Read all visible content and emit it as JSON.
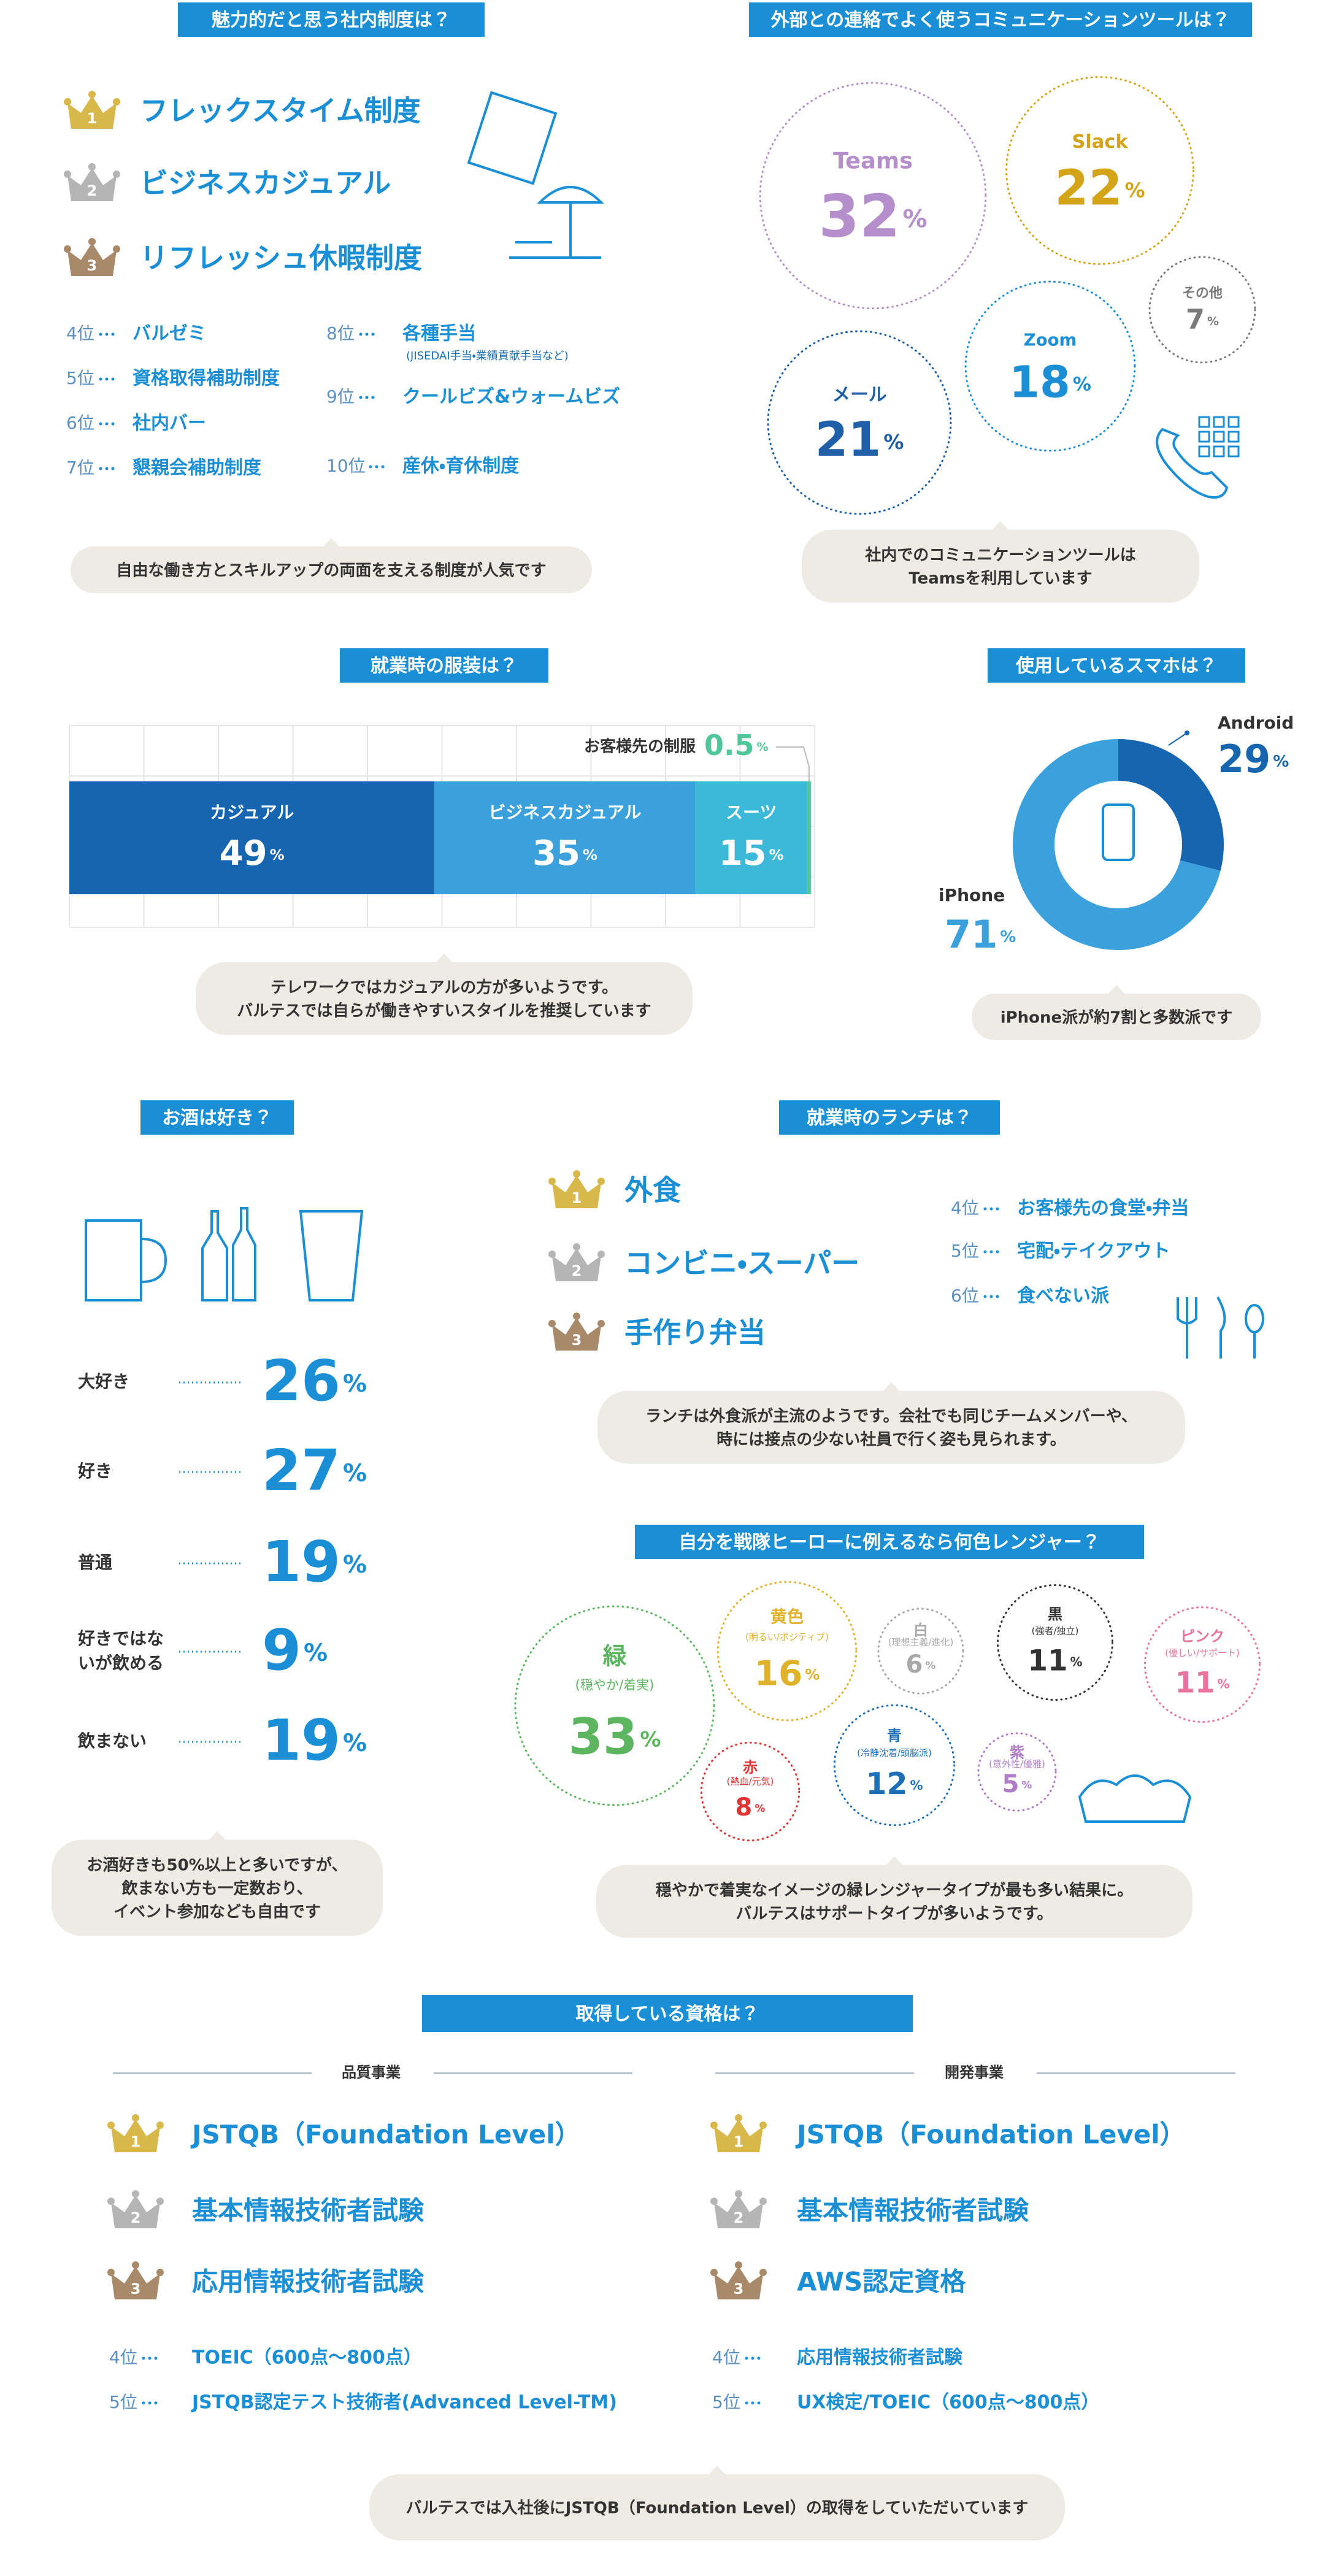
{
  "crown_numbers": [
    "1",
    "2",
    "3"
  ],
  "perks": {
    "title": "魅力的だと思う社内制度は？",
    "top3": [
      "フレックスタイム制度",
      "ビジネスカジュアル",
      "リフレッシュ休暇制度"
    ],
    "ranks": [
      {
        "rank": "4位",
        "label": "バルゼミ"
      },
      {
        "rank": "5位",
        "label": "資格取得補助制度"
      },
      {
        "rank": "6位",
        "label": "社内バー"
      },
      {
        "rank": "7位",
        "label": "懇親会補助制度"
      },
      {
        "rank": "8位",
        "label": "各種手当",
        "sub": "(JISEDAI手当・業績貢献手当など)"
      },
      {
        "rank": "9位",
        "label": "クールビズ&ウォームビズ"
      },
      {
        "rank": "10位",
        "label": "産休・育休制度"
      }
    ],
    "note": [
      "自由な働き方とスキルアップの両面を支える制度が人気です"
    ]
  },
  "tools": {
    "title": "外部との連絡でよく使うコミュニケーションツールは？",
    "unit": "%",
    "items": [
      {
        "name": "Teams",
        "value": 32,
        "color": "#b48fcb"
      },
      {
        "name": "Slack",
        "value": 22,
        "color": "#d4a418"
      },
      {
        "name": "その他",
        "value": 7,
        "color": "#7a7a7a"
      },
      {
        "name": "Zoom",
        "value": 18,
        "color": "#1b8fd6"
      },
      {
        "name": "メール",
        "value": 21,
        "color": "#1e5fa8"
      }
    ],
    "note": [
      "社内でのコミュニケーションツールは",
      "Teamsを利用しています"
    ]
  },
  "clothing": {
    "title": "就業時の服装は？",
    "unit": "%",
    "segments": [
      {
        "name": "カジュアル",
        "value": 49,
        "color": "#1565b0"
      },
      {
        "name": "ビジネスカジュアル",
        "value": 35,
        "color": "#3aa1dd"
      },
      {
        "name": "スーツ",
        "value": 15,
        "color": "#3cb8d8"
      },
      {
        "name": "お客様先の制服",
        "value": 0.5,
        "color": "#4fc79b"
      }
    ],
    "note": [
      "テレワークではカジュアルの方が多いようです。",
      "バルテスでは自らが働きやすいスタイルを推奨しています"
    ]
  },
  "phone": {
    "title": "使用しているスマホは？",
    "unit": "%",
    "segments": [
      {
        "name": "Android",
        "value": 29,
        "color": "#1565b0"
      },
      {
        "name": "iPhone",
        "value": 71,
        "color": "#3aa1dd"
      }
    ],
    "note": [
      "iPhone派が約7割と多数派です"
    ]
  },
  "drinks": {
    "title": "お酒は好き？",
    "unit": "%",
    "items": [
      {
        "label": [
          "大好き"
        ],
        "value": 26
      },
      {
        "label": [
          "好き"
        ],
        "value": 27
      },
      {
        "label": [
          "普通"
        ],
        "value": 19
      },
      {
        "label": [
          "好きではな",
          "いが飲める"
        ],
        "value": 9
      },
      {
        "label": [
          "飲まない"
        ],
        "value": 19
      }
    ],
    "note": [
      "お酒好きも50%以上と多いですが、",
      "飲まない方も一定数おり、",
      "イベント参加なども自由です"
    ]
  },
  "lunch": {
    "title": "就業時のランチは？",
    "top3": [
      "外食",
      "コンビニ・スーパー",
      "手作り弁当"
    ],
    "ranks": [
      {
        "rank": "4位",
        "label": "お客様先の食堂・弁当"
      },
      {
        "rank": "5位",
        "label": "宅配・テイクアウト"
      },
      {
        "rank": "6位",
        "label": "食べない派"
      }
    ],
    "note": [
      "ランチは外食派が主流のようです。会社でも同じチームメンバーや、",
      "時には接点の少ない社員で行く姿も見られます。"
    ]
  },
  "ranger": {
    "title": "自分を戦隊ヒーローに例えるなら何色レンジャー？",
    "unit": "%",
    "items": [
      {
        "name": "緑",
        "trait": "(穏やか/着実)",
        "value": 33,
        "color": "#5bb65f"
      },
      {
        "name": "黄色",
        "trait": "(明るい/ポジティブ)",
        "value": 16,
        "color": "#e0b12a"
      },
      {
        "name": "白",
        "trait": "(理想主義/進化)",
        "value": 6,
        "color": "#a8a8a8"
      },
      {
        "name": "黒",
        "trait": "(強者/独立)",
        "value": 11,
        "color": "#333333"
      },
      {
        "name": "ピンク",
        "trait": "(優しい/サポート)",
        "value": 11,
        "color": "#e8749d"
      },
      {
        "name": "赤",
        "trait": "(熱血/元気)",
        "value": 8,
        "color": "#e03434"
      },
      {
        "name": "青",
        "trait": "(冷静沈着/頭脳派)",
        "value": 12,
        "color": "#1e6fb8"
      },
      {
        "name": "紫",
        "trait": "(意外性/優雅)",
        "value": 5,
        "color": "#b07cc8"
      }
    ],
    "note": [
      "穏やかで着実なイメージの緑レンジャータイプが最も多い結果に。",
      "バルテスはサポートタイプが多いようです。"
    ]
  },
  "certs": {
    "title": "取得している資格は？",
    "groups": [
      {
        "name": "品質事業",
        "top3": [
          "JSTQB（Foundation Level）",
          "基本情報技術者試験",
          "応用情報技術者試験"
        ],
        "ranks": [
          {
            "rank": "4位",
            "label": "TOEIC（600点〜800点）"
          },
          {
            "rank": "5位",
            "label": "JSTQB認定テスト技術者(Advanced Level-TM)"
          }
        ]
      },
      {
        "name": "開発事業",
        "top3": [
          "JSTQB（Foundation Level）",
          "基本情報技術者試験",
          "AWS認定資格"
        ],
        "ranks": [
          {
            "rank": "4位",
            "label": "応用情報技術者試験"
          },
          {
            "rank": "5位",
            "label": "UX検定/TOEIC（600点〜800点）"
          }
        ]
      }
    ],
    "note": [
      "バルテスでは入社後にJSTQB（Foundation Level）の取得をしていただいています"
    ]
  }
}
